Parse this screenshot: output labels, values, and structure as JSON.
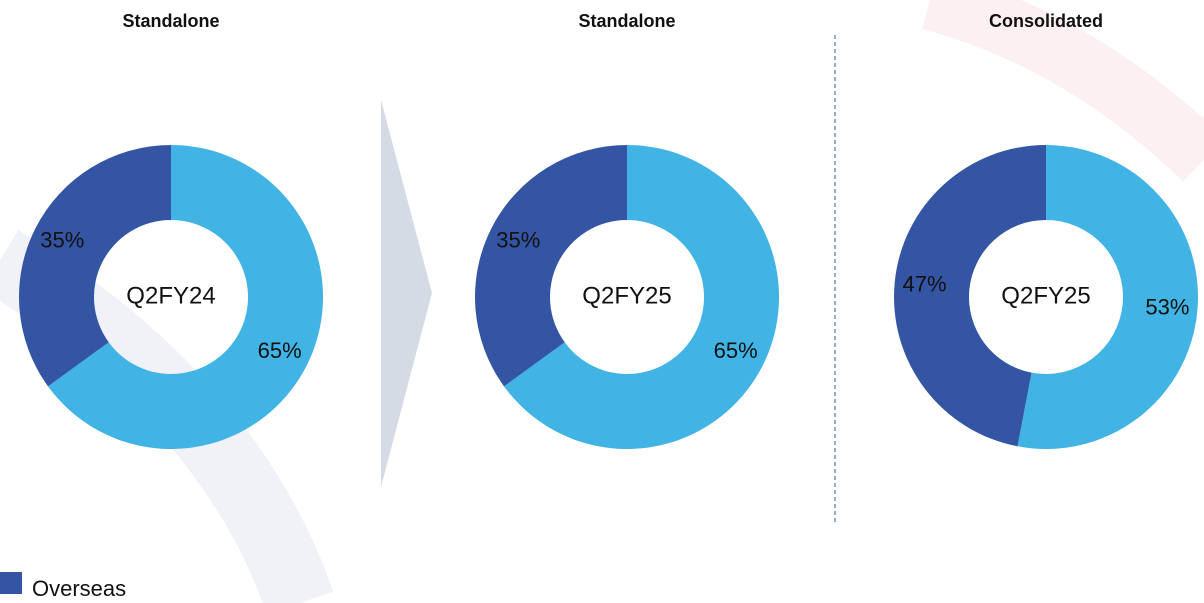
{
  "chart_data": [
    {
      "type": "pie",
      "title": "Standalone",
      "center_label": "Q2FY24",
      "categories": [
        null,
        "Overseas"
      ],
      "values": [
        65,
        35
      ],
      "value_labels": [
        "65%",
        "35%"
      ],
      "colors": [
        "#41b3e5",
        "#3355a3"
      ],
      "donut": true
    },
    {
      "type": "pie",
      "title": "Standalone",
      "center_label": "Q2FY25",
      "categories": [
        null,
        "Overseas"
      ],
      "values": [
        65,
        35
      ],
      "value_labels": [
        "65%",
        "35%"
      ],
      "colors": [
        "#41b3e5",
        "#3355a3"
      ],
      "donut": true
    },
    {
      "type": "pie",
      "title": "Consolidated",
      "center_label": "Q2FY25",
      "categories": [
        null,
        "Overseas"
      ],
      "values": [
        53,
        47
      ],
      "value_labels": [
        "53%",
        "47%"
      ],
      "colors": [
        "#41b3e5",
        "#3355a3"
      ],
      "donut": true
    }
  ],
  "legend": {
    "label": "Overseas",
    "color": "#3355a3"
  }
}
